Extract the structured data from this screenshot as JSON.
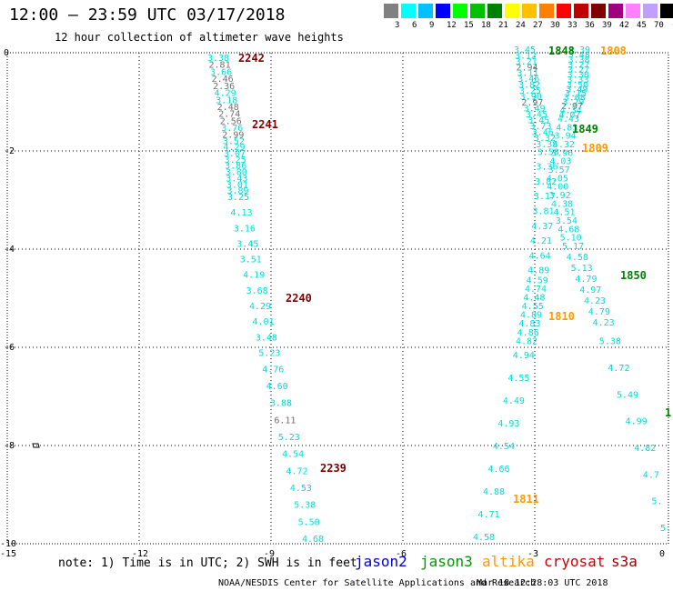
{
  "title": "12:00 – 23:59 UTC 03/17/2018",
  "subtitle": "12 hour collection of altimeter wave heights",
  "legend": {
    "colors": [
      "#808080",
      "#00ffff",
      "#00c0ff",
      "#0000ff",
      "#00ff00",
      "#00c000",
      "#008000",
      "#ffff00",
      "#ffc000",
      "#ff8000",
      "#ff0000",
      "#c00000",
      "#800000",
      "#a00080",
      "#ff80ff",
      "#c0a0ff",
      "#000000"
    ],
    "labels": [
      "3",
      "6",
      "9",
      "12",
      "15",
      "18",
      "21",
      "24",
      "27",
      "30",
      "33",
      "36",
      "39",
      "42",
      "45",
      "70",
      "(ft)"
    ]
  },
  "axes": {
    "x_ticks": [
      "-15",
      "-12",
      "-9",
      "-6",
      "-3",
      "0"
    ],
    "y_ticks": [
      "0",
      "-2",
      "-4",
      "-6",
      "-8",
      "-10"
    ]
  },
  "tracks": [
    {
      "values": [
        "3.38",
        "2.81",
        "3.66",
        "2.46",
        "2.36",
        "4.29",
        "3.18",
        "2.48",
        "2.74",
        "2.56",
        "3.76",
        "2.99",
        "3.52",
        "4.29",
        "3.07",
        "3.25",
        "3.86",
        "3.80",
        "3.43",
        "3.01",
        "3.89",
        "3.25",
        "4.13",
        "3.16",
        "3.45",
        "3.51",
        "4.19",
        "3.68",
        "4.29",
        "4.01",
        "3.48",
        "5.23",
        "4.76",
        "4.60",
        "3.88",
        "6.11",
        "5.23",
        "4.54",
        "4.72",
        "4.53",
        "5.38",
        "5.50",
        "4.68"
      ],
      "colors": [
        "c",
        "g",
        "c",
        "g",
        "g",
        "c",
        "c",
        "g",
        "g",
        "g",
        "c",
        "g",
        "c",
        "c",
        "c",
        "c",
        "c",
        "c",
        "c",
        "c",
        "c",
        "c",
        "c",
        "c",
        "c",
        "c",
        "c",
        "c",
        "c",
        "c",
        "c",
        "c",
        "c",
        "c",
        "c",
        "g",
        "c",
        "c",
        "c",
        "c",
        "c",
        "c",
        "c"
      ]
    },
    {
      "values": [
        "3.45",
        "3.12",
        "3.21",
        "2.94",
        "3.11",
        "3.46",
        "3.82",
        "3.25",
        "3.90",
        "2.97",
        "3.49",
        "3.45",
        "3.45",
        "3.73",
        "3.46",
        "3.32",
        "3.38",
        "3.58",
        "3.36",
        "3.82",
        "3.17",
        "3.81",
        "4.37",
        "4.21",
        "4.64",
        "4.89",
        "4.59",
        "4.74",
        "4.48",
        "4.55",
        "4.89",
        "4.83",
        "4.86",
        "4.82",
        "4.94",
        "4.55",
        "4.49",
        "4.93",
        "4.54",
        "4.66",
        "4.88",
        "4.71",
        "4.58"
      ],
      "colors": [
        "c",
        "c",
        "c",
        "g",
        "c",
        "c",
        "c",
        "c",
        "c",
        "g",
        "c",
        "c",
        "c",
        "c",
        "c",
        "c",
        "c",
        "c",
        "c",
        "c",
        "c",
        "c",
        "c",
        "c",
        "c",
        "c",
        "c",
        "c",
        "c",
        "c",
        "c",
        "c",
        "c",
        "c",
        "c",
        "c",
        "c",
        "c",
        "c",
        "c",
        "c",
        "c",
        "c"
      ]
    },
    {
      "values": [
        "3.39",
        "3.48",
        "3.38",
        "3.27",
        "3.27",
        "3.38",
        "3.33",
        "3.50",
        "3.49",
        "3.15",
        "3.68",
        "3.29",
        "2.97",
        "4.34",
        "4.07",
        "4.43",
        "4.83",
        "3.94",
        "4.32",
        "3.96",
        "4.03",
        "3.57",
        "4.05",
        "4.00",
        "3.92",
        "4.38",
        "4.51",
        "3.54",
        "4.68",
        "5.10",
        "5.17",
        "4.58",
        "5.13",
        "4.79",
        "4.97",
        "4.23",
        "4.79",
        "4.23",
        "5.38",
        "4.72",
        "5.49",
        "4.99",
        "4.82",
        "4.7",
        "5.",
        "5."
      ],
      "colors": [
        "c",
        "c",
        "c",
        "c",
        "c",
        "c",
        "c",
        "c",
        "c",
        "c",
        "c",
        "c",
        "g",
        "c",
        "c",
        "c",
        "c",
        "c",
        "c",
        "c",
        "c",
        "c",
        "c",
        "c",
        "c",
        "c",
        "c",
        "c",
        "c",
        "c",
        "c",
        "c",
        "c",
        "c",
        "c",
        "c",
        "c",
        "c",
        "c",
        "c",
        "c",
        "c",
        "c",
        "c",
        "c",
        "c"
      ]
    }
  ],
  "pass_labels": [
    {
      "text": "2242",
      "color": "#800000"
    },
    {
      "text": "2241",
      "color": "#800000"
    },
    {
      "text": "2240",
      "color": "#800000"
    },
    {
      "text": "2239",
      "color": "#800000"
    },
    {
      "text": "1848",
      "color": "#008000"
    },
    {
      "text": "1808",
      "color": "#ff9900"
    },
    {
      "text": "1849",
      "color": "#008000"
    },
    {
      "text": "1809",
      "color": "#ff9900"
    },
    {
      "text": "1850",
      "color": "#008000"
    },
    {
      "text": "1810",
      "color": "#ff9900"
    },
    {
      "text": "1811",
      "color": "#ff9900"
    },
    {
      "text": "1.",
      "color": "#008000"
    }
  ],
  "note": "note: 1) Time is in UTC; 2) SWH is in feet",
  "satellites": [
    {
      "name": "jason2",
      "color": "#0000cc"
    },
    {
      "name": "jason3",
      "color": "#009900"
    },
    {
      "name": "altika",
      "color": "#ff9900"
    },
    {
      "name": "cryosat",
      "color": "#cc0000"
    },
    {
      "name": "s3a",
      "color": "#990000"
    }
  ],
  "credit": "NOAA/NESDIS Center for Satellite Applications and Research",
  "timestamp": "Mar 18 12:28:03 UTC 2018"
}
